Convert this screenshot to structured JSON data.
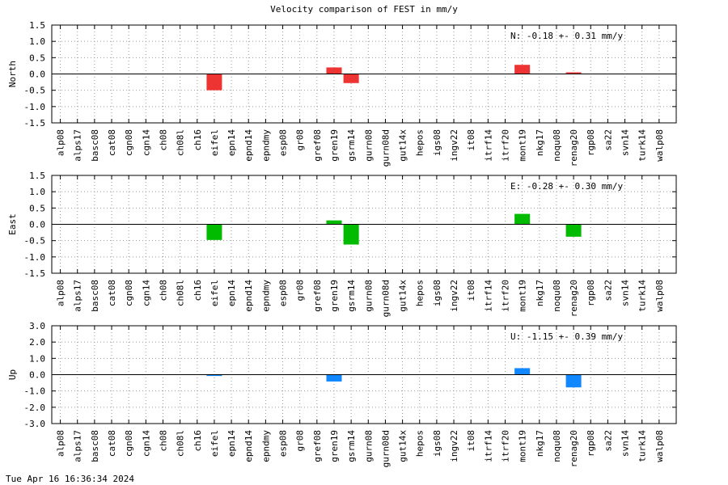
{
  "title": "Velocity comparison of FEST in mm/y",
  "footer": "Tue Apr 16 16:36:34 2024",
  "chart_data": [
    {
      "type": "bar",
      "ylabel": "North",
      "color": "#ee3333",
      "ylim": [
        -1.5,
        1.5
      ],
      "yticks": [
        1.5,
        1.0,
        0.5,
        0.0,
        -0.5,
        -1.0,
        -1.5
      ],
      "ytick_labels": [
        "1.5",
        "1.0",
        "0.5",
        "0.0",
        "-0.5",
        "-1.0",
        "-1.5"
      ],
      "summary": "N:  -0.18 +-  0.31 mm/y",
      "categories": [
        "alp08",
        "alps17",
        "basc08",
        "cat08",
        "cgn08",
        "cgn14",
        "ch08",
        "ch08l",
        "ch16",
        "eifel",
        "epn14",
        "epnd14",
        "epndmy",
        "esp08",
        "gr08",
        "gref08",
        "gren19",
        "gsrm14",
        "gurn08",
        "gurn08d",
        "gut14x",
        "hepos",
        "igs08",
        "ingv22",
        "it08",
        "itrf14",
        "itrf20",
        "mont19",
        "nkg17",
        "noqu08",
        "renag20",
        "rgp08",
        "sa22",
        "svn14",
        "turk14",
        "walp08"
      ],
      "values": [
        0,
        0,
        0,
        0,
        0,
        0,
        0,
        0,
        0,
        -0.5,
        0,
        0,
        0,
        0,
        0,
        0,
        0.2,
        -0.28,
        0,
        0,
        0,
        0,
        0,
        0,
        0,
        0,
        0,
        0.28,
        0,
        0,
        0.05,
        0,
        0,
        0,
        0,
        0
      ]
    },
    {
      "type": "bar",
      "ylabel": "East",
      "color": "#00bb00",
      "ylim": [
        -1.5,
        1.5
      ],
      "yticks": [
        1.5,
        1.0,
        0.5,
        0.0,
        -0.5,
        -1.0,
        -1.5
      ],
      "ytick_labels": [
        "1.5",
        "1.0",
        "0.5",
        "0.0",
        "-0.5",
        "-1.0",
        "-1.5"
      ],
      "summary": "E:  -0.28 +-  0.30 mm/y",
      "categories": [
        "alp08",
        "alps17",
        "basc08",
        "cat08",
        "cgn08",
        "cgn14",
        "ch08",
        "ch08l",
        "ch16",
        "eifel",
        "epn14",
        "epnd14",
        "epndmy",
        "esp08",
        "gr08",
        "gref08",
        "gren19",
        "gsrm14",
        "gurn08",
        "gurn08d",
        "gut14x",
        "hepos",
        "igs08",
        "ingv22",
        "it08",
        "itrf14",
        "itrf20",
        "mont19",
        "nkg17",
        "noqu08",
        "renag20",
        "rgp08",
        "sa22",
        "svn14",
        "turk14",
        "walp08"
      ],
      "values": [
        0,
        0,
        0,
        0,
        0,
        0,
        0,
        0,
        0,
        -0.48,
        0,
        0,
        0,
        0,
        0,
        0,
        0.12,
        -0.62,
        0,
        0,
        0,
        0,
        0,
        0,
        0,
        0,
        0,
        0.32,
        0,
        0,
        -0.38,
        0,
        0,
        0,
        0,
        0
      ]
    },
    {
      "type": "bar",
      "ylabel": "Up",
      "color": "#1188ff",
      "ylim": [
        -3.0,
        3.0
      ],
      "yticks": [
        3.0,
        2.0,
        1.0,
        0.0,
        -1.0,
        -2.0,
        -3.0
      ],
      "ytick_labels": [
        "3.0",
        "2.0",
        "1.0",
        "0.0",
        "-1.0",
        "-2.0",
        "-3.0"
      ],
      "summary": "U:  -1.15 +-  0.39 mm/y",
      "categories": [
        "alp08",
        "alps17",
        "basc08",
        "cat08",
        "cgn08",
        "cgn14",
        "ch08",
        "ch08l",
        "ch16",
        "eifel",
        "epn14",
        "epnd14",
        "epndmy",
        "esp08",
        "gr08",
        "gref08",
        "gren19",
        "gsrm14",
        "gurn08",
        "gurn08d",
        "gut14x",
        "hepos",
        "igs08",
        "ingv22",
        "it08",
        "itrf14",
        "itrf20",
        "mont19",
        "nkg17",
        "noqu08",
        "renag20",
        "rgp08",
        "sa22",
        "svn14",
        "turk14",
        "walp08"
      ],
      "values": [
        0,
        0,
        0,
        0,
        0,
        0,
        0,
        0,
        0,
        -0.08,
        0,
        0,
        0,
        0,
        0,
        0,
        -0.42,
        0,
        0,
        0,
        0,
        0,
        0,
        0,
        0,
        0,
        0,
        0.4,
        0,
        0,
        -0.78,
        0,
        0,
        0,
        0,
        0
      ]
    }
  ]
}
